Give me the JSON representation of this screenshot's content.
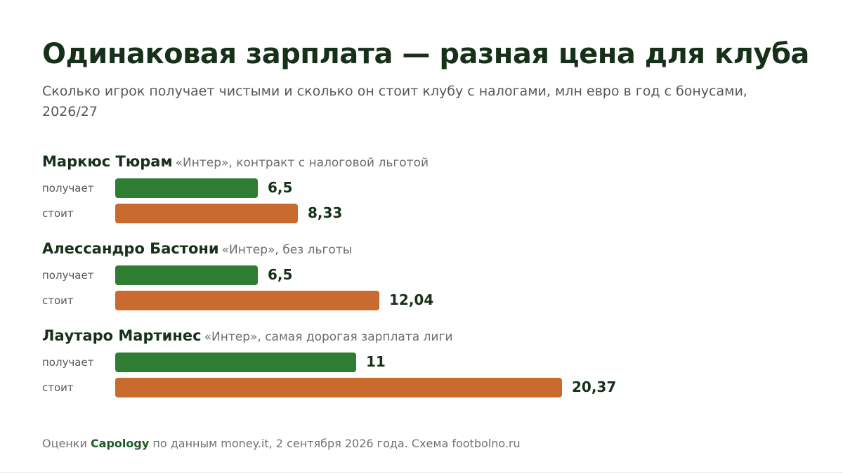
{
  "title": "Одинаковая зарплата — разная цена для клуба",
  "subtitle": "Сколько игрок получает чистыми и сколько он стоит клубу с налогами, млн евро в год с бонусами, 2026/27",
  "colors": {
    "receives": "#2e7d32",
    "costs": "#c96a2e",
    "text": "#17301a"
  },
  "chart_data": {
    "type": "bar",
    "orientation": "horizontal",
    "series": [
      {
        "name": "получает",
        "values": [
          6.5,
          6.5,
          11
        ]
      },
      {
        "name": "стоит",
        "values": [
          8.33,
          12.04,
          20.37
        ]
      }
    ],
    "groups": [
      {
        "name": "Маркюс Тюрам",
        "note": "«Интер», контракт с налоговой льготой",
        "rows": [
          {
            "label": "получает",
            "value": 6.5,
            "value_label": "6,5",
            "series": "receives"
          },
          {
            "label": "стоит",
            "value": 8.33,
            "value_label": "8,33",
            "series": "costs"
          }
        ]
      },
      {
        "name": "Алессандро Бастони",
        "note": "«Интер», без льготы",
        "rows": [
          {
            "label": "получает",
            "value": 6.5,
            "value_label": "6,5",
            "series": "receives"
          },
          {
            "label": "стоит",
            "value": 12.04,
            "value_label": "12,04",
            "series": "costs"
          }
        ]
      },
      {
        "name": "Лаутаро Мартинес",
        "note": "«Интер», самая дорогая зарплата лиги",
        "rows": [
          {
            "label": "получает",
            "value": 11,
            "value_label": "11",
            "series": "receives"
          },
          {
            "label": "стоит",
            "value": 20.37,
            "value_label": "20,37",
            "series": "costs"
          }
        ]
      }
    ],
    "xlim": [
      0,
      20.37
    ],
    "grid": false,
    "legend": "none"
  },
  "footer": {
    "prefix": "Оценки ",
    "source": "Capology",
    "suffix": " по данным money.it, 2 сентября 2026 года. Схема footbolno.ru"
  }
}
